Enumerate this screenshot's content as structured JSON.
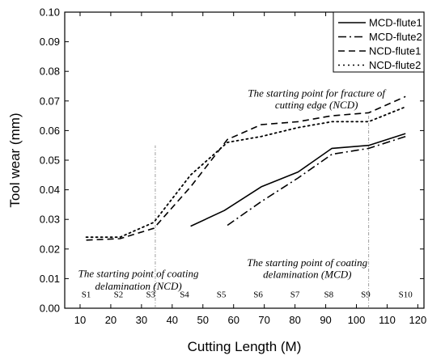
{
  "chart_data": {
    "type": "line",
    "title": "",
    "xlabel": "Cutting Length (M)",
    "ylabel": "Tool wear (mm)",
    "xlim": [
      5,
      122
    ],
    "ylim": [
      0.0,
      0.1
    ],
    "xticks": [
      10,
      20,
      30,
      40,
      50,
      60,
      70,
      80,
      90,
      100,
      110,
      120
    ],
    "xtick_labels": [
      "10",
      "20",
      "30",
      "40",
      "50",
      "60",
      "70",
      "80",
      "90",
      "100",
      "110",
      "120"
    ],
    "yticks": [
      0.0,
      0.01,
      0.02,
      0.03,
      0.04,
      0.05,
      0.06,
      0.07,
      0.08,
      0.09,
      0.1
    ],
    "ytick_labels": [
      "0.00",
      "0.01",
      "0.02",
      "0.03",
      "0.04",
      "0.05",
      "0.06",
      "0.07",
      "0.08",
      "0.09",
      "0.10"
    ],
    "grid": false,
    "legend_position": "top-right",
    "series": [
      {
        "name": "MCD-flute1",
        "dash": "solid",
        "x": [
          46,
          57,
          69,
          81,
          92,
          104,
          116
        ],
        "y": [
          0.0277,
          0.033,
          0.041,
          0.046,
          0.054,
          0.055,
          0.059
        ]
      },
      {
        "name": "MCD-flute2",
        "dash": "dashdot",
        "x": [
          58,
          69,
          81,
          92,
          104,
          116
        ],
        "y": [
          0.028,
          0.036,
          0.044,
          0.052,
          0.054,
          0.058
        ]
      },
      {
        "name": "NCD-flute1",
        "dash": "dashed",
        "x": [
          12,
          23,
          34,
          46,
          58,
          69,
          81,
          92,
          104,
          116
        ],
        "y": [
          0.023,
          0.0235,
          0.027,
          0.041,
          0.057,
          0.062,
          0.063,
          0.065,
          0.066,
          0.0715
        ]
      },
      {
        "name": "NCD-flute2",
        "dash": "dotted",
        "x": [
          12,
          23,
          34,
          46,
          58,
          69,
          81,
          92,
          104,
          116
        ],
        "y": [
          0.024,
          0.024,
          0.029,
          0.045,
          0.056,
          0.058,
          0.061,
          0.063,
          0.063,
          0.068
        ]
      }
    ],
    "stages": [
      {
        "label": "S1",
        "x": 12
      },
      {
        "label": "S2",
        "x": 22.5
      },
      {
        "label": "S3",
        "x": 33
      },
      {
        "label": "S4",
        "x": 44
      },
      {
        "label": "S5",
        "x": 56
      },
      {
        "label": "S6",
        "x": 68
      },
      {
        "label": "S7",
        "x": 80
      },
      {
        "label": "S8",
        "x": 91
      },
      {
        "label": "S9",
        "x": 103
      },
      {
        "label": "S10",
        "x": 116
      }
    ],
    "reference_lines": [
      {
        "x": 34.5,
        "y_from": 0.0,
        "y_to": 0.055
      },
      {
        "x": 104,
        "y_from": 0.0,
        "y_to": 0.0655
      }
    ],
    "annotations": [
      {
        "text": "The starting point for fracture of",
        "x": 87,
        "y": 0.0715
      },
      {
        "text": "cutting edge (NCD)",
        "x": 87,
        "y": 0.0675
      },
      {
        "text": "The starting point of coating",
        "x": 29,
        "y": 0.0105
      },
      {
        "text": "delamination (NCD)",
        "x": 29,
        "y": 0.0063
      },
      {
        "text": "The starting point of coating",
        "x": 84,
        "y": 0.0142
      },
      {
        "text": "delamination (MCD)",
        "x": 84,
        "y": 0.0102
      }
    ]
  }
}
